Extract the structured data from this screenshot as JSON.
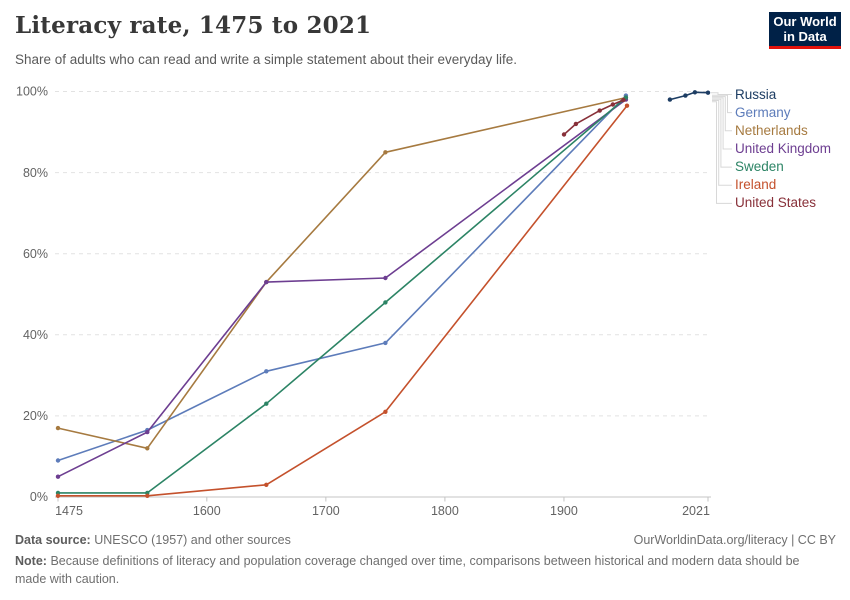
{
  "header": {
    "title": "Literacy rate, 1475 to 2021",
    "subtitle": "Share of adults who can read and write a simple statement about their everyday life.",
    "logo": {
      "line1": "Our World",
      "line2": "in Data",
      "bg_color": "#002147",
      "accent_color": "#E3120B"
    }
  },
  "chart_data": {
    "type": "line",
    "title": "Literacy rate, 1475 to 2021",
    "xlabel": "",
    "ylabel": "",
    "xlim": [
      1475,
      2021
    ],
    "ylim": [
      0,
      100
    ],
    "grid": "horizontal-dashed",
    "legend_position": "right",
    "x_ticks": [
      {
        "year": 1475,
        "label": "1475"
      },
      {
        "year": 1600,
        "label": "1600"
      },
      {
        "year": 1700,
        "label": "1700"
      },
      {
        "year": 1800,
        "label": "1800"
      },
      {
        "year": 1900,
        "label": "1900"
      },
      {
        "year": 2021,
        "label": "2021"
      }
    ],
    "y_ticks": [
      {
        "value": 0,
        "label": "0%"
      },
      {
        "value": 20,
        "label": "20%"
      },
      {
        "value": 40,
        "label": "40%"
      },
      {
        "value": 60,
        "label": "60%"
      },
      {
        "value": 80,
        "label": "80%"
      },
      {
        "value": 100,
        "label": "100%"
      }
    ],
    "styles": {
      "grid_color": "#E2E2E2",
      "axis_color": "#C4C4C4",
      "tick_label_color": "#636363",
      "connector_color": "#D8D8D8"
    },
    "series": [
      {
        "name": "Russia",
        "color": "#1D3D63",
        "points": [
          [
            1989,
            98
          ],
          [
            2002,
            99
          ],
          [
            2010,
            99.8
          ],
          [
            2021,
            99.7
          ]
        ]
      },
      {
        "name": "Germany",
        "color": "#5D7CBA",
        "points": [
          [
            1475,
            9
          ],
          [
            1550,
            16.5
          ],
          [
            1650,
            31
          ],
          [
            1750,
            38
          ],
          [
            1952,
            99
          ]
        ]
      },
      {
        "name": "Netherlands",
        "color": "#A67A40",
        "points": [
          [
            1475,
            17
          ],
          [
            1550,
            12
          ],
          [
            1650,
            53
          ],
          [
            1750,
            85
          ],
          [
            1952,
            98.5
          ]
        ]
      },
      {
        "name": "United Kingdom",
        "color": "#6D3E91",
        "points": [
          [
            1475,
            5
          ],
          [
            1550,
            16
          ],
          [
            1650,
            53
          ],
          [
            1750,
            54
          ],
          [
            1952,
            98
          ]
        ]
      },
      {
        "name": "Sweden",
        "color": "#2C8465",
        "points": [
          [
            1475,
            1
          ],
          [
            1550,
            1
          ],
          [
            1650,
            23
          ],
          [
            1750,
            48
          ],
          [
            1952,
            98.5
          ]
        ]
      },
      {
        "name": "Ireland",
        "color": "#C4512C",
        "points": [
          [
            1475,
            0.3
          ],
          [
            1550,
            0.3
          ],
          [
            1650,
            3
          ],
          [
            1750,
            21
          ],
          [
            1953,
            96.5
          ]
        ]
      },
      {
        "name": "United States",
        "color": "#883039",
        "points": [
          [
            1900,
            89.4
          ],
          [
            1910,
            92
          ],
          [
            1930,
            95.3
          ],
          [
            1941,
            96.8
          ],
          [
            1950,
            97.9
          ]
        ]
      }
    ]
  },
  "footer": {
    "datasource_label": "Data source:",
    "datasource_text": "UNESCO (1957) and other sources",
    "note_label": "Note:",
    "note_text": "Because definitions of literacy and population coverage changed over time, comparisons between historical and modern data should be made with caution.",
    "link_text": "OurWorldinData.org/literacy | CC BY"
  }
}
